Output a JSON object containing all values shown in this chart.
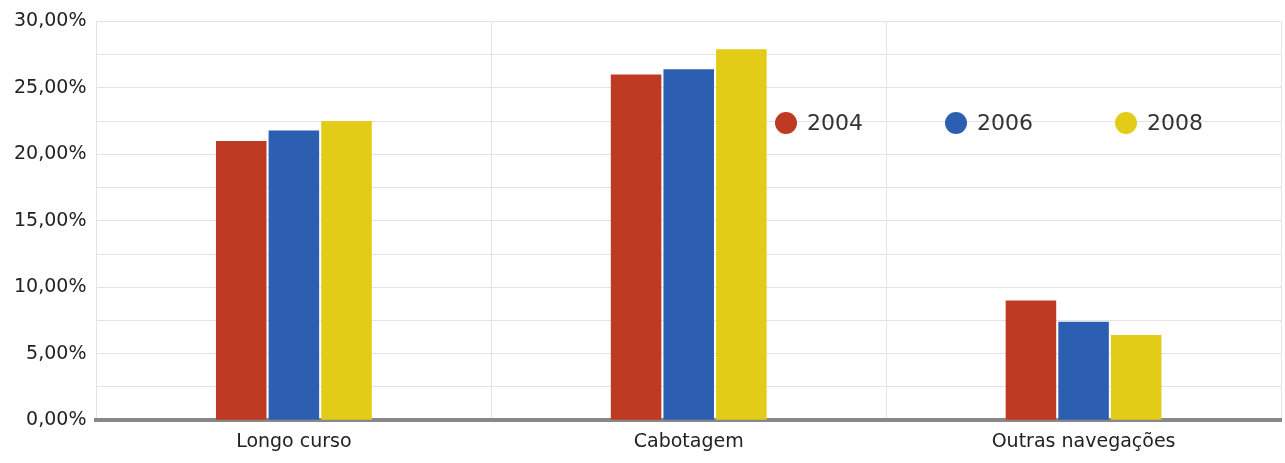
{
  "chart_data": {
    "type": "bar",
    "categories": [
      "Longo curso",
      "Cabotagem",
      "Outras navegações"
    ],
    "series": [
      {
        "name": "2004",
        "color": "#bf3a22",
        "values": [
          21.0,
          26.0,
          9.0
        ]
      },
      {
        "name": "2006",
        "color": "#2c5fb2",
        "values": [
          21.8,
          26.4,
          7.4
        ]
      },
      {
        "name": "2008",
        "color": "#e2cc18",
        "values": [
          22.5,
          27.9,
          6.4
        ]
      }
    ],
    "ylim": [
      0,
      30
    ],
    "yticks": [
      {
        "value": 0,
        "label": "0,00%"
      },
      {
        "value": 2.5,
        "label": null
      },
      {
        "value": 5,
        "label": "5,00%"
      },
      {
        "value": 7.5,
        "label": null
      },
      {
        "value": 10,
        "label": "10,00%"
      },
      {
        "value": 12.5,
        "label": null
      },
      {
        "value": 15,
        "label": "15,00%"
      },
      {
        "value": 17.5,
        "label": null
      },
      {
        "value": 20,
        "label": "20,00%"
      },
      {
        "value": 22.5,
        "label": null
      },
      {
        "value": 25,
        "label": "25,00%"
      },
      {
        "value": 27.5,
        "label": null
      },
      {
        "value": 30,
        "label": "30,00%"
      }
    ],
    "grid": true,
    "legend": "top right"
  }
}
